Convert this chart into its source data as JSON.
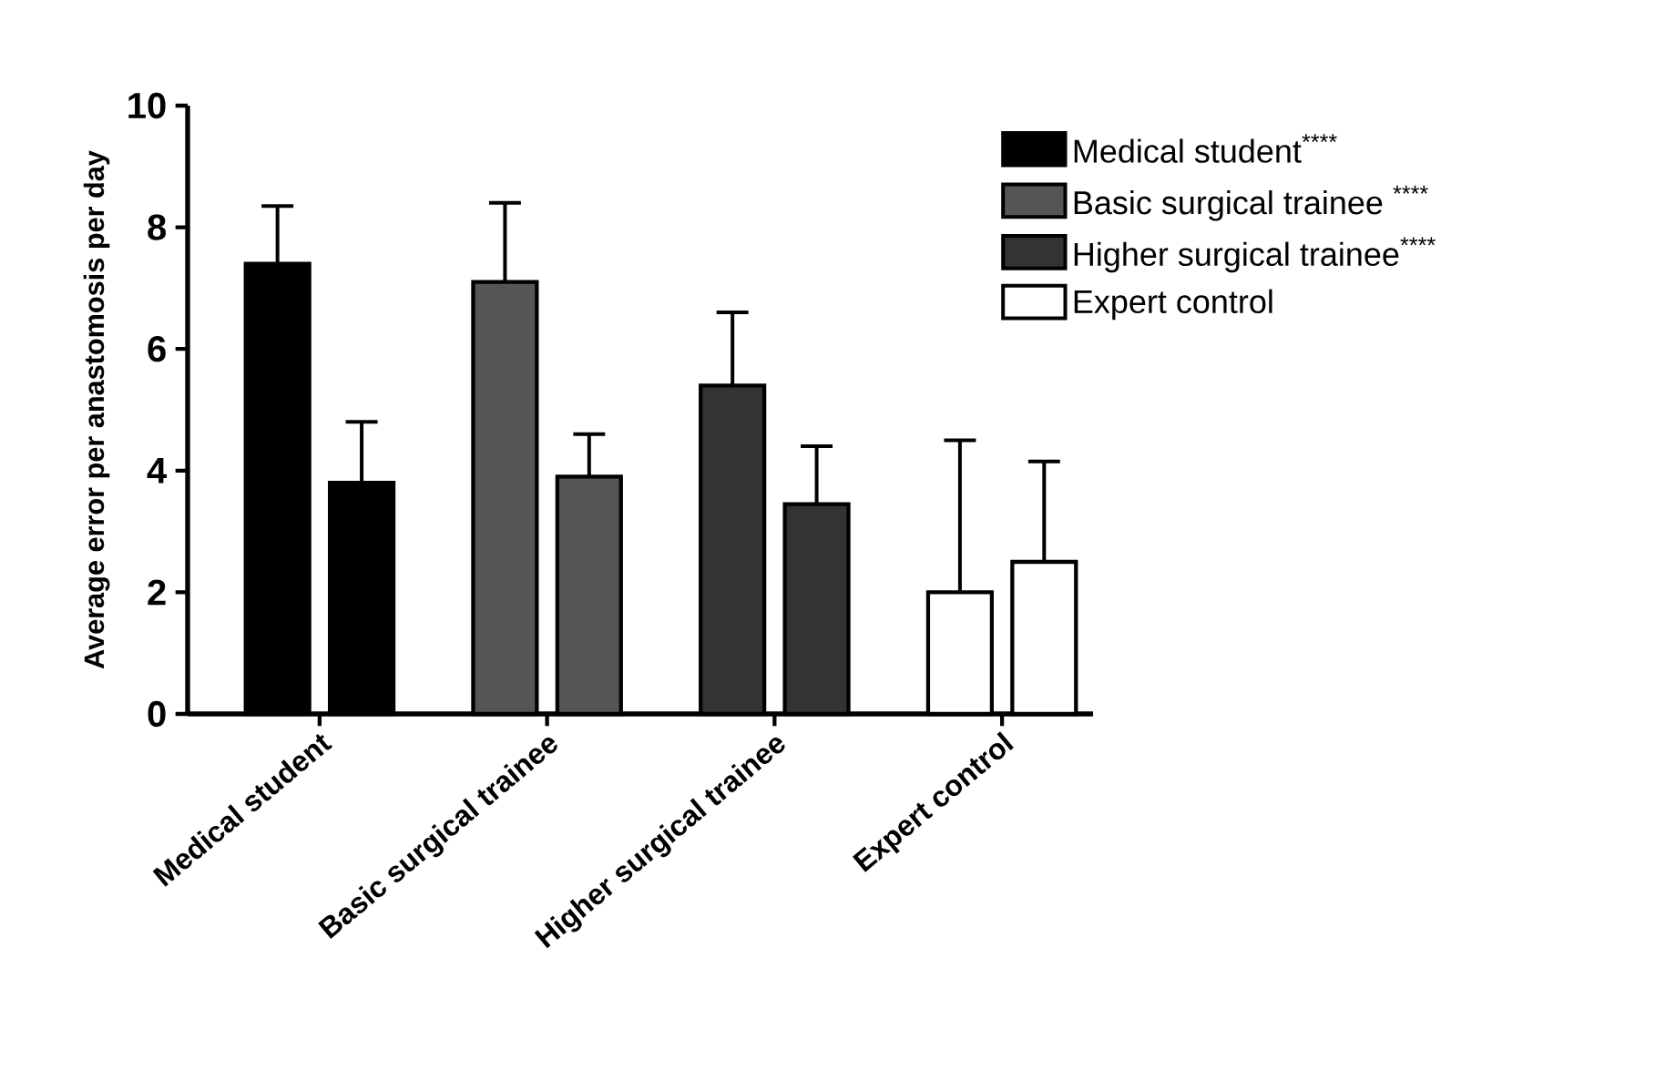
{
  "chart_data": {
    "type": "bar",
    "ylabel": "Average error per anastomosis per day",
    "categories": [
      "Medical student",
      "Basic surgical trainee",
      "Higher surgical trainee",
      "Expert control"
    ],
    "series": [
      {
        "name": "Medical student$^{****}$",
        "color": "#000000",
        "values": [
          7.4,
          null,
          null,
          null
        ],
        "errors": [
          [
            7.4,
            8.35
          ],
          null,
          null,
          null
        ]
      },
      {
        "color": "#000000",
        "values": [
          3.8,
          null,
          null,
          null
        ],
        "errors": [
          [
            3.8,
            4.8
          ],
          null,
          null,
          null
        ]
      },
      {
        "name": "Basic surgical trainee $^{****}$",
        "color": "#555555",
        "values": [
          null,
          7.1,
          null,
          null
        ],
        "errors": [
          null,
          [
            7.1,
            8.4
          ],
          null,
          null
        ]
      },
      {
        "color": "#555555",
        "values": [
          null,
          3.9,
          null,
          null
        ],
        "errors": [
          null,
          [
            3.9,
            4.6
          ],
          null,
          null
        ]
      },
      {
        "name": "Higher surgical trainee$^{****}$",
        "color": "#333333",
        "values": [
          null,
          null,
          5.4,
          null
        ],
        "errors": [
          null,
          null,
          [
            5.4,
            6.6
          ],
          null
        ]
      },
      {
        "color": "#333333",
        "values": [
          null,
          null,
          3.45,
          null
        ],
        "errors": [
          null,
          null,
          [
            3.45,
            4.4
          ],
          null
        ]
      },
      {
        "name": "Expert control",
        "color": "#ffffff",
        "values": [
          null,
          null,
          null,
          2.0
        ],
        "errors": [
          null,
          null,
          null,
          [
            2.0,
            4.5
          ]
        ]
      },
      {
        "color": "#ffffff",
        "values": [
          null,
          null,
          null,
          2.5
        ],
        "errors": [
          null,
          null,
          null,
          [
            2.5,
            4.15
          ]
        ]
      }
    ],
    "ylim": [
      0,
      10
    ],
    "yticks": [
      0,
      2,
      4,
      6,
      8,
      10
    ],
    "grid": false,
    "legend": "top right"
  }
}
